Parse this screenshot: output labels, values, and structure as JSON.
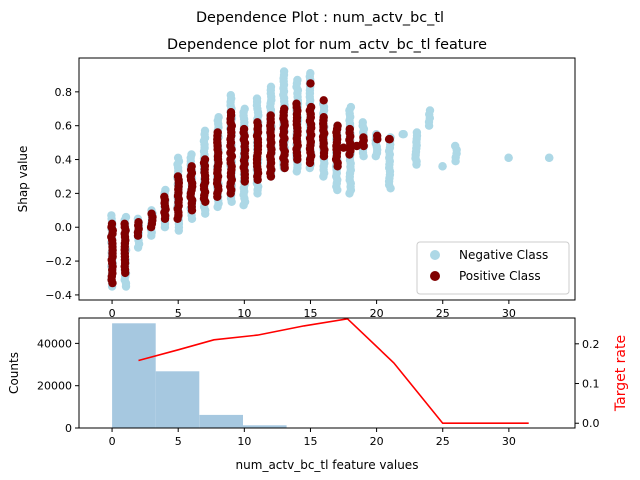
{
  "figure": {
    "suptitle": "Dependence Plot : num_actv_bc_tl"
  },
  "chart_data": [
    {
      "type": "scatter",
      "title": "Dependence plot for num_actv_bc_tl feature",
      "xlabel": "",
      "ylabel": "Shap value",
      "xlim": [
        -2.5,
        35
      ],
      "ylim": [
        -0.43,
        1.0
      ],
      "x_ticks": [
        0,
        5,
        10,
        15,
        20,
        25,
        30
      ],
      "y_ticks": [
        -0.4,
        -0.2,
        0.0,
        0.2,
        0.4,
        0.6,
        0.8
      ],
      "legend_position": "lower-right",
      "series": [
        {
          "name": "Negative Class",
          "color": "#add8e6",
          "columns": [
            {
              "x": 0,
              "ymin": -0.35,
              "ymax": 0.07
            },
            {
              "x": 1,
              "ymin": -0.35,
              "ymax": 0.06
            },
            {
              "x": 2,
              "ymin": -0.12,
              "ymax": 0.05
            },
            {
              "x": 3,
              "ymin": -0.05,
              "ymax": 0.1
            },
            {
              "x": 4,
              "ymin": 0.0,
              "ymax": 0.22
            },
            {
              "x": 5,
              "ymin": -0.02,
              "ymax": 0.41
            },
            {
              "x": 6,
              "ymin": 0.05,
              "ymax": 0.43
            },
            {
              "x": 7,
              "ymin": 0.08,
              "ymax": 0.57
            },
            {
              "x": 8,
              "ymin": 0.12,
              "ymax": 0.65
            },
            {
              "x": 9,
              "ymin": 0.15,
              "ymax": 0.78
            },
            {
              "x": 10,
              "ymin": 0.13,
              "ymax": 0.7
            },
            {
              "x": 11,
              "ymin": 0.2,
              "ymax": 0.76
            },
            {
              "x": 12,
              "ymin": 0.3,
              "ymax": 0.83
            },
            {
              "x": 13,
              "ymin": 0.35,
              "ymax": 0.92
            },
            {
              "x": 14,
              "ymin": 0.33,
              "ymax": 0.87
            },
            {
              "x": 15,
              "ymin": 0.35,
              "ymax": 0.91
            },
            {
              "x": 16,
              "ymin": 0.3,
              "ymax": 0.73
            },
            {
              "x": 17,
              "ymin": 0.22,
              "ymax": 0.6
            },
            {
              "x": 18,
              "ymin": 0.2,
              "ymax": 0.71
            },
            {
              "x": 19,
              "ymin": 0.42,
              "ymax": 0.62
            },
            {
              "x": 20,
              "ymin": 0.42,
              "ymax": 0.55
            },
            {
              "x": 21,
              "ymin": 0.23,
              "ymax": 0.53
            },
            {
              "x": 22,
              "ymin": 0.55,
              "ymax": 0.55
            },
            {
              "x": 23,
              "ymin": 0.37,
              "ymax": 0.56
            },
            {
              "x": 24,
              "ymin": 0.6,
              "ymax": 0.69
            },
            {
              "x": 25,
              "ymin": 0.36,
              "ymax": 0.36
            },
            {
              "x": 26,
              "ymin": 0.39,
              "ymax": 0.48
            },
            {
              "x": 30,
              "ymin": 0.41,
              "ymax": 0.41
            },
            {
              "x": 33,
              "ymin": 0.41,
              "ymax": 0.41
            }
          ]
        },
        {
          "name": "Positive Class",
          "color": "#800000",
          "columns": [
            {
              "x": 0,
              "ymin": -0.33,
              "ymax": 0.02
            },
            {
              "x": 1,
              "ymin": -0.27,
              "ymax": 0.02
            },
            {
              "x": 2,
              "ymin": -0.05,
              "ymax": 0.03
            },
            {
              "x": 3,
              "ymin": 0.0,
              "ymax": 0.08
            },
            {
              "x": 4,
              "ymin": 0.05,
              "ymax": 0.18
            },
            {
              "x": 5,
              "ymin": 0.05,
              "ymax": 0.3
            },
            {
              "x": 6,
              "ymin": 0.1,
              "ymax": 0.36
            },
            {
              "x": 7,
              "ymin": 0.15,
              "ymax": 0.4
            },
            {
              "x": 8,
              "ymin": 0.18,
              "ymax": 0.56
            },
            {
              "x": 9,
              "ymin": 0.2,
              "ymax": 0.68
            },
            {
              "x": 10,
              "ymin": 0.27,
              "ymax": 0.58
            },
            {
              "x": 11,
              "ymin": 0.28,
              "ymax": 0.62
            },
            {
              "x": 12,
              "ymin": 0.3,
              "ymax": 0.66
            },
            {
              "x": 13,
              "ymin": 0.35,
              "ymax": 0.7
            },
            {
              "x": 14,
              "ymin": 0.4,
              "ymax": 0.73
            },
            {
              "x": 15,
              "ymin": 0.38,
              "ymax": 0.71
            },
            {
              "x": 16,
              "ymin": 0.42,
              "ymax": 0.65
            },
            {
              "x": 17,
              "ymin": 0.36,
              "ymax": 0.6
            },
            {
              "x": 18,
              "ymin": 0.43,
              "ymax": 0.58
            },
            {
              "x": 19,
              "ymin": 0.48,
              "ymax": 0.53
            },
            {
              "x": 20,
              "ymin": 0.52,
              "ymax": 0.54
            },
            {
              "x": 21,
              "ymin": 0.52,
              "ymax": 0.52
            }
          ],
          "extra_points": [
            {
              "x": 15,
              "y": 0.85
            },
            {
              "x": 16,
              "y": 0.75
            },
            {
              "x": 17.5,
              "y": 0.47
            },
            {
              "x": 18.5,
              "y": 0.48
            }
          ]
        }
      ]
    },
    {
      "type": "bar",
      "title": "",
      "xlabel": "num_actv_bc_tl feature values",
      "ylabel": "Counts",
      "y2label": "Target rate",
      "xlim": [
        -2.5,
        35
      ],
      "ylim": [
        0,
        52000
      ],
      "y2lim": [
        -0.012,
        0.265
      ],
      "x_ticks": [
        0,
        5,
        10,
        15,
        20,
        25,
        30
      ],
      "y_ticks": [
        0,
        20000,
        40000
      ],
      "y2_ticks": [
        0.0,
        0.1,
        0.2
      ],
      "bins": [
        {
          "x0": 0,
          "x1": 3.3,
          "count": 49500
        },
        {
          "x0": 3.3,
          "x1": 6.6,
          "count": 26800
        },
        {
          "x0": 6.6,
          "x1": 9.9,
          "count": 6200
        },
        {
          "x0": 9.9,
          "x1": 13.2,
          "count": 1300
        },
        {
          "x0": 13.2,
          "x1": 16.5,
          "count": 200
        },
        {
          "x0": 16.5,
          "x1": 33,
          "count": 30
        }
      ],
      "bar_color": "#a6c8e0",
      "target_rate": {
        "color": "#ff0000",
        "x": [
          2.0,
          5.0,
          7.7,
          11.0,
          14.5,
          17.8,
          21.3,
          25.0,
          31.5
        ],
        "y": [
          0.158,
          0.185,
          0.21,
          0.222,
          0.245,
          0.263,
          0.152,
          0.0,
          0.0
        ]
      }
    }
  ]
}
